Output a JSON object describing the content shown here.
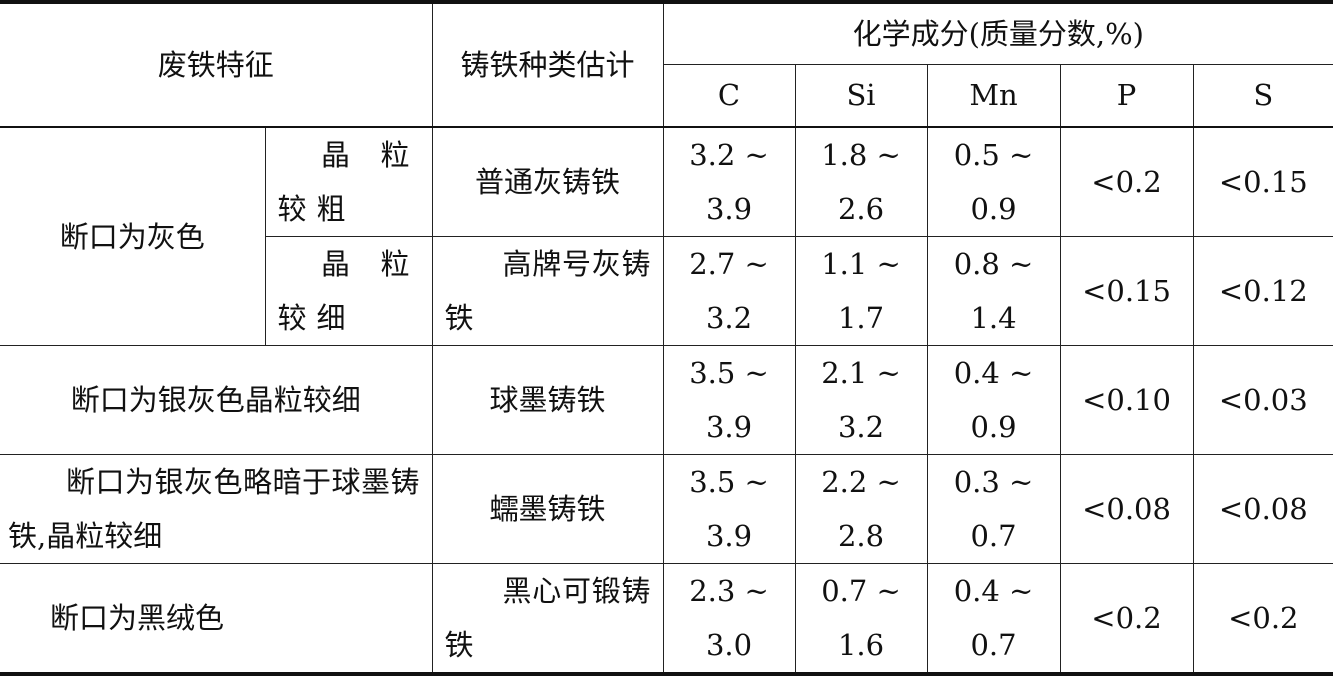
{
  "header": {
    "feature": "废铁特征",
    "cast_type": "铸铁种类估计",
    "composition": "化学成分(质量分数,%)",
    "elements": [
      "C",
      "Si",
      "Mn",
      "P",
      "S"
    ]
  },
  "rows": [
    {
      "feature": "断口为灰色",
      "sub": "晶粒较粗",
      "type": "普通灰铸铁",
      "C": [
        "3.2 ~",
        "3.9"
      ],
      "Si": [
        "1.8 ~",
        "2.6"
      ],
      "Mn": [
        "0.5 ~",
        "0.9"
      ],
      "P": "<0.2",
      "S": "<0.15"
    },
    {
      "sub": "晶粒较细",
      "type": "高牌号灰铸铁",
      "C": [
        "2.7 ~",
        "3.2"
      ],
      "Si": [
        "1.1 ~",
        "1.7"
      ],
      "Mn": [
        "0.8 ~",
        "1.4"
      ],
      "P": "<0.15",
      "S": "<0.12"
    },
    {
      "feature": "断口为银灰色晶粒较细",
      "type": "球墨铸铁",
      "C": [
        "3.5 ~",
        "3.9"
      ],
      "Si": [
        "2.1 ~",
        "3.2"
      ],
      "Mn": [
        "0.4 ~",
        "0.9"
      ],
      "P": "<0.10",
      "S": "<0.03"
    },
    {
      "feature": "断口为银灰色略暗于球墨铸铁,晶粒较细",
      "type": "蠕墨铸铁",
      "C": [
        "3.5 ~",
        "3.9"
      ],
      "Si": [
        "2.2 ~",
        "2.8"
      ],
      "Mn": [
        "0.3 ~",
        "0.7"
      ],
      "P": "<0.08",
      "S": "<0.08"
    },
    {
      "feature": "断口为黑绒色",
      "type": "黑心可锻铸铁",
      "C": [
        "2.3 ~",
        "3.0"
      ],
      "Si": [
        "0.7 ~",
        "1.6"
      ],
      "Mn": [
        "0.4 ~",
        "0.7"
      ],
      "P": "<0.2",
      "S": "<0.2"
    }
  ]
}
